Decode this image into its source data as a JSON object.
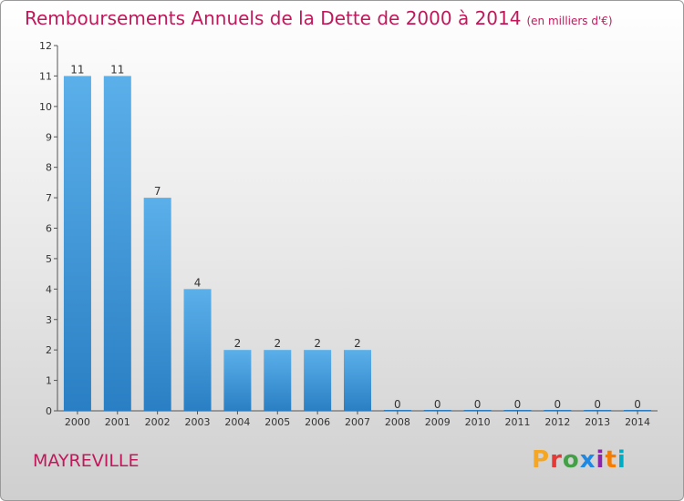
{
  "title": "Remboursements Annuels de la Dette de 2000 à 2014",
  "title_unit": "(en milliers d'€)",
  "commune": "MAYREVILLE",
  "logo_text": "Proxiti",
  "colors": {
    "title": "#c2185b",
    "bar_top": "#5bb0ea",
    "bar_bottom": "#2a7fc4",
    "logo": [
      "#f5a623",
      "#e53935",
      "#43a047",
      "#1e88e5",
      "#8e24aa",
      "#f57c00",
      "#00acc1"
    ]
  },
  "chart_data": {
    "type": "bar",
    "title": "Remboursements Annuels de la Dette de 2000 à 2014",
    "categories": [
      "2000",
      "2001",
      "2002",
      "2003",
      "2004",
      "2005",
      "2006",
      "2007",
      "2008",
      "2009",
      "2010",
      "2011",
      "2012",
      "2013",
      "2014"
    ],
    "values": [
      11,
      11,
      7,
      4,
      2,
      2,
      2,
      2,
      0,
      0,
      0,
      0,
      0,
      0,
      0
    ],
    "data_labels": [
      "11",
      "11",
      "7",
      "4",
      "2",
      "2",
      "2",
      "2",
      "0",
      "0",
      "0",
      "0",
      "0",
      "0",
      "0"
    ],
    "yticks": [
      "0",
      "1",
      "2",
      "3",
      "4",
      "5",
      "6",
      "7",
      "8",
      "9",
      "10",
      "11",
      "12"
    ],
    "ylim": [
      0,
      12
    ],
    "grid": false,
    "legend": "none"
  }
}
